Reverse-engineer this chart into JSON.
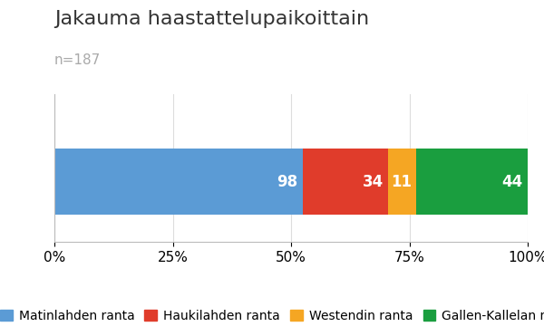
{
  "title": "Jakauma haastattelupaikoittain",
  "subtitle": "n=187",
  "total": 187,
  "values": [
    98,
    34,
    11,
    44
  ],
  "labels": [
    "Matinlahden ranta",
    "Haukilahden ranta",
    "Westendin ranta",
    "Gallen-Kallelan museo"
  ],
  "colors": [
    "#5b9bd5",
    "#e03c2b",
    "#f5a623",
    "#1a9e3f"
  ],
  "xtick_labels": [
    "0%",
    "25%",
    "50%",
    "75%",
    "100%"
  ],
  "xtick_values": [
    0,
    0.25,
    0.5,
    0.75,
    1.0
  ],
  "title_fontsize": 16,
  "subtitle_fontsize": 11,
  "tick_fontsize": 11,
  "legend_fontsize": 10,
  "value_fontsize": 12,
  "bg_color": "#ffffff",
  "subtitle_color": "#aaaaaa",
  "grid_color": "#dddddd",
  "title_color": "#333333"
}
